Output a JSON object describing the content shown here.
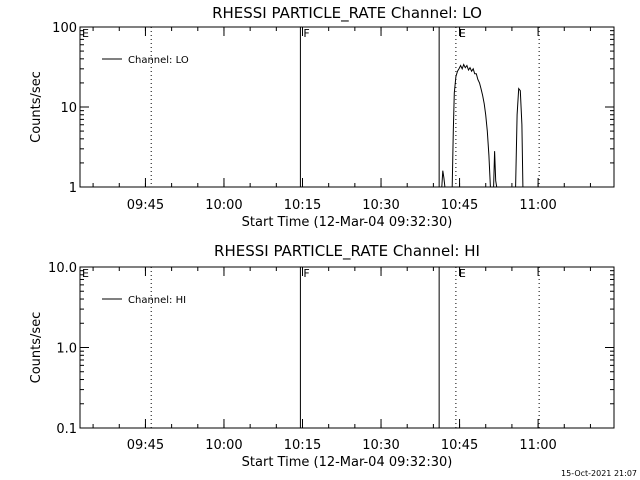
{
  "colors": {
    "background": "#ffffff",
    "foreground": "#000000"
  },
  "timestamp": "15-Oct-2021 21:07",
  "chart_data": [
    {
      "type": "line",
      "title": "RHESSI PARTICLE_RATE Channel: LO",
      "ylabel": "Counts/sec",
      "xlabel": "Start Time (12-Mar-04 09:32:30)",
      "x_unit": "minutes after 09:32:30",
      "xlim": [
        0,
        102
      ],
      "yscale": "log",
      "ylim": [
        1,
        100
      ],
      "y_ticks": [
        "1",
        "10",
        "100"
      ],
      "x_ticks": [
        {
          "label": "09:45",
          "t": 12.5
        },
        {
          "label": "10:00",
          "t": 27.5
        },
        {
          "label": "10:15",
          "t": 42.5
        },
        {
          "label": "10:30",
          "t": 57.5
        },
        {
          "label": "10:45",
          "t": 72.5
        },
        {
          "label": "11:00",
          "t": 87.5
        }
      ],
      "legend": {
        "position": "top-left",
        "entries": [
          "Channel: LO"
        ]
      },
      "series": [
        {
          "name": "Channel: LO",
          "segments": [
            [
              [
                69.1,
                1
              ],
              [
                69.3,
                1.6
              ],
              [
                69.5,
                1.3
              ],
              [
                69.7,
                1
              ]
            ],
            [
              [
                71.1,
                1
              ],
              [
                71.3,
                5
              ],
              [
                71.5,
                15
              ],
              [
                71.8,
                24
              ],
              [
                72.1,
                28
              ],
              [
                72.4,
                30
              ],
              [
                72.7,
                33
              ],
              [
                73.0,
                30
              ],
              [
                73.3,
                34
              ],
              [
                73.6,
                31
              ],
              [
                73.9,
                33
              ],
              [
                74.2,
                29
              ],
              [
                74.5,
                31
              ],
              [
                74.8,
                28
              ],
              [
                75.1,
                30
              ],
              [
                75.4,
                26
              ],
              [
                75.7,
                26
              ],
              [
                76.0,
                22
              ],
              [
                76.3,
                20
              ],
              [
                76.6,
                17
              ],
              [
                76.9,
                14
              ],
              [
                77.2,
                11
              ],
              [
                77.5,
                8
              ],
              [
                77.8,
                5
              ],
              [
                78.1,
                2.5
              ],
              [
                78.4,
                1
              ]
            ],
            [
              [
                79.0,
                1
              ],
              [
                79.2,
                2.8
              ],
              [
                79.4,
                1.2
              ],
              [
                79.6,
                1
              ]
            ],
            [
              [
                83.2,
                1
              ],
              [
                83.5,
                8
              ],
              [
                83.8,
                17
              ],
              [
                84.1,
                16
              ],
              [
                84.4,
                6
              ],
              [
                84.6,
                1
              ]
            ]
          ]
        }
      ],
      "markers": [
        {
          "label": "",
          "t": 13.6,
          "style": "dotted"
        },
        {
          "label": "F",
          "t": 42.1,
          "style": "solid"
        },
        {
          "label": "",
          "t": 68.6,
          "style": "solid"
        },
        {
          "label": "E",
          "t": 71.8,
          "style": "dotted"
        },
        {
          "label": "",
          "t": 87.7,
          "style": "dotted"
        }
      ],
      "corner_label": "E"
    },
    {
      "type": "line",
      "title": "RHESSI PARTICLE_RATE Channel: HI",
      "ylabel": "Counts/sec",
      "xlabel": "Start Time (12-Mar-04 09:32:30)",
      "x_unit": "minutes after 09:32:30",
      "xlim": [
        0,
        102
      ],
      "yscale": "log",
      "ylim": [
        0.1,
        10
      ],
      "y_ticks": [
        "0.1",
        "1.0",
        "10.0"
      ],
      "x_ticks": [
        {
          "label": "09:45",
          "t": 12.5
        },
        {
          "label": "10:00",
          "t": 27.5
        },
        {
          "label": "10:15",
          "t": 42.5
        },
        {
          "label": "10:30",
          "t": 57.5
        },
        {
          "label": "10:45",
          "t": 72.5
        },
        {
          "label": "11:00",
          "t": 87.5
        }
      ],
      "legend": {
        "position": "top-left",
        "entries": [
          "Channel: HI"
        ]
      },
      "series": [
        {
          "name": "Channel: HI",
          "segments": []
        }
      ],
      "markers": [
        {
          "label": "",
          "t": 13.6,
          "style": "dotted"
        },
        {
          "label": "F",
          "t": 42.1,
          "style": "solid"
        },
        {
          "label": "",
          "t": 68.6,
          "style": "solid"
        },
        {
          "label": "E",
          "t": 71.8,
          "style": "dotted"
        },
        {
          "label": "",
          "t": 87.7,
          "style": "dotted"
        }
      ],
      "corner_label": "E"
    }
  ]
}
